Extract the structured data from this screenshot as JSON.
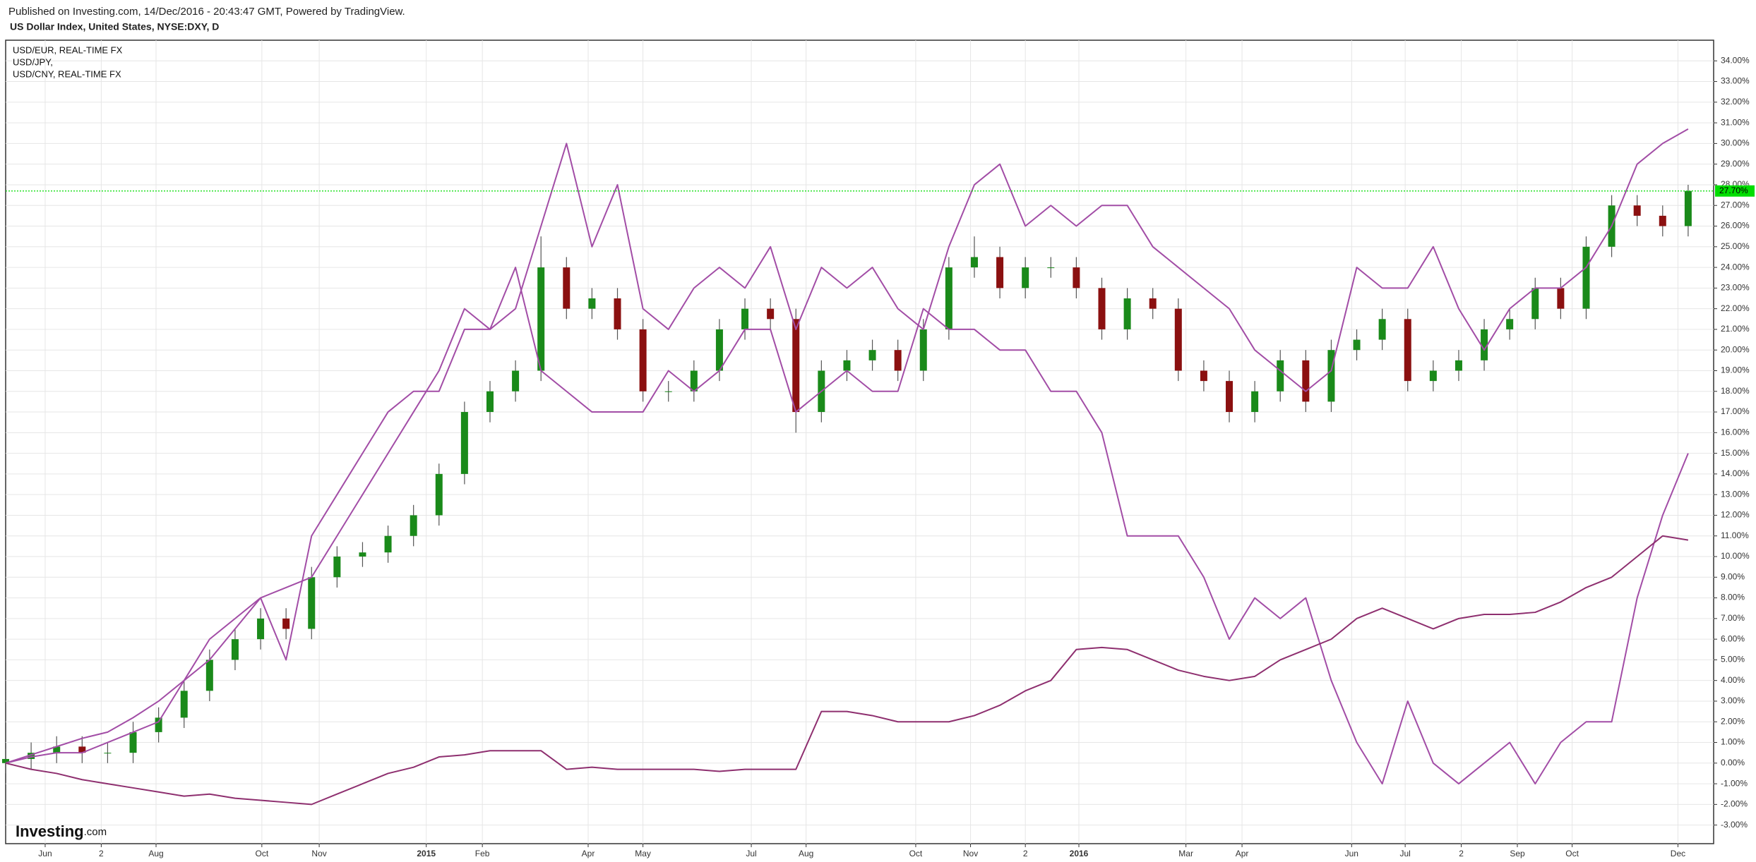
{
  "header": {
    "published": "Published on Investing.com, 14/Dec/2016 - 20:43:47 GMT, Powered by TradingView.",
    "title": "US Dollar Index, United States, NYSE:DXY, D"
  },
  "logo": {
    "brand": "Investing",
    "suffix": ".com"
  },
  "chart_data": {
    "type": "candlestick",
    "x": [
      0,
      2,
      4,
      6,
      8,
      10,
      12,
      14,
      16,
      18,
      20,
      22,
      24,
      26,
      28,
      30,
      32,
      34,
      36,
      38,
      40,
      42,
      44,
      46,
      48,
      50,
      52,
      54,
      56,
      58,
      60,
      62,
      64,
      66,
      68,
      70,
      72,
      74,
      76,
      78,
      80,
      82,
      84,
      86,
      88,
      90,
      92,
      94,
      96,
      98,
      100,
      102,
      104,
      106,
      108,
      110,
      112,
      114,
      116,
      118,
      120,
      122,
      124,
      126,
      128,
      130,
      132
    ],
    "candles": {
      "up_color": "#1a8a1a",
      "down_color": "#8b1010",
      "open": [
        0,
        0.2,
        0.5,
        0.8,
        0.5,
        0.5,
        1.5,
        2.2,
        3.5,
        5,
        6,
        7,
        6.5,
        9,
        10,
        10.2,
        11,
        12,
        14,
        17,
        18,
        19,
        24,
        22,
        22.5,
        21,
        18,
        18,
        19,
        21,
        22,
        21.5,
        17,
        19,
        19.5,
        20,
        19,
        21,
        24,
        24.5,
        23,
        24,
        24,
        23,
        21,
        22.5,
        22,
        19,
        18.5,
        17,
        18,
        19.5,
        17.5,
        20,
        20.5,
        21.5,
        18.5,
        19,
        19.5,
        21,
        21.5,
        23,
        22,
        25,
        27,
        26.5,
        26
      ],
      "high": [
        0.7,
        1.0,
        1.3,
        1.3,
        1.0,
        2.0,
        2.7,
        4.0,
        5.5,
        6.5,
        7.5,
        7.5,
        9.5,
        10.5,
        10.7,
        11.5,
        12.5,
        14.5,
        17.5,
        18.5,
        19.5,
        25.5,
        24.5,
        23,
        23,
        21.5,
        18.5,
        19.5,
        21.5,
        22.5,
        22.5,
        22,
        19.5,
        20,
        20.5,
        20.5,
        21.5,
        24.5,
        25.5,
        25,
        24.5,
        24.5,
        24.5,
        23.5,
        23,
        23,
        22.5,
        19.5,
        19,
        18.5,
        20,
        20,
        20.5,
        21,
        22,
        22,
        19.5,
        20,
        21.5,
        22,
        23.5,
        23.5,
        25.5,
        27.5,
        27.5,
        27,
        28
      ],
      "low": [
        -0.5,
        -0.3,
        0,
        0,
        0,
        0,
        1,
        1.7,
        3,
        4.5,
        5.5,
        6,
        6,
        8.5,
        9.5,
        9.7,
        10.5,
        11.5,
        13.5,
        16.5,
        17.5,
        18.5,
        21.5,
        21.5,
        20.5,
        17.5,
        17.5,
        17.5,
        18.5,
        20.5,
        21,
        16,
        16.5,
        18.5,
        19,
        18.5,
        18.5,
        20.5,
        23.5,
        22.5,
        22.5,
        23.5,
        22.5,
        20.5,
        20.5,
        21.5,
        18.5,
        18,
        16.5,
        16.5,
        17.5,
        17,
        17,
        19.5,
        20,
        18,
        18,
        18.5,
        19,
        20.5,
        21,
        21.5,
        21.5,
        24.5,
        26,
        25.5,
        25.5
      ],
      "close": [
        0.2,
        0.5,
        0.8,
        0.5,
        0.5,
        1.5,
        2.2,
        3.5,
        5,
        6,
        7,
        6.5,
        9,
        10,
        10.2,
        11,
        12,
        14,
        17,
        18,
        19,
        24,
        22,
        22.5,
        21,
        18,
        18,
        19,
        21,
        22,
        21.5,
        17,
        19,
        19.5,
        20,
        19,
        21,
        24,
        24.5,
        23,
        24,
        24,
        23,
        21,
        22.5,
        22,
        19,
        18.5,
        17,
        18,
        19.5,
        17.5,
        20,
        20.5,
        21.5,
        18.5,
        19,
        19.5,
        21,
        21.5,
        23,
        22,
        25,
        27,
        26.5,
        26,
        27.7
      ]
    },
    "series": [
      {
        "name": "USD/EUR, REAL-TIME FX",
        "color": "#a24da6",
        "values": [
          0,
          0.4,
          0.8,
          1.2,
          1.5,
          2.2,
          3,
          4,
          5,
          6.5,
          8,
          8.5,
          9,
          11,
          13,
          15,
          17,
          19,
          22,
          21,
          22,
          26,
          30,
          25,
          28,
          22,
          21,
          23,
          24,
          23,
          25,
          21,
          24,
          23,
          24,
          22,
          21,
          25,
          28,
          29,
          26,
          27,
          26,
          27,
          27,
          25,
          24,
          23,
          22,
          20,
          19,
          18,
          19,
          24,
          23,
          23,
          25,
          22,
          20,
          22,
          23,
          23,
          24,
          26,
          29,
          30,
          30.7
        ]
      },
      {
        "name": "USD/JPY,",
        "color": "#a24da6",
        "values": [
          0,
          0.3,
          0.5,
          0.5,
          1,
          1.5,
          2,
          4,
          6,
          7,
          8,
          5,
          11,
          13,
          15,
          17,
          18,
          18,
          21,
          21,
          24,
          19,
          18,
          17,
          17,
          17,
          19,
          18,
          19,
          21,
          21,
          17,
          18,
          19,
          18,
          18,
          22,
          21,
          21,
          20,
          20,
          18,
          18,
          16,
          11,
          11,
          11,
          9,
          6,
          8,
          7,
          8,
          4,
          1,
          -1,
          3,
          0,
          -1,
          0,
          1,
          -1,
          1,
          2,
          2,
          8,
          12,
          15
        ]
      },
      {
        "name": "USD/CNY, REAL-TIME FX",
        "color": "#8e2f6f",
        "values": [
          0,
          -0.3,
          -0.5,
          -0.8,
          -1,
          -1.2,
          -1.4,
          -1.6,
          -1.5,
          -1.7,
          -1.8,
          -1.9,
          -2,
          -1.5,
          -1,
          -0.5,
          -0.2,
          0.3,
          0.4,
          0.6,
          0.6,
          0.6,
          -0.3,
          -0.2,
          -0.3,
          -0.3,
          -0.3,
          -0.3,
          -0.4,
          -0.3,
          -0.3,
          -0.3,
          2.5,
          2.5,
          2.3,
          2,
          2,
          2,
          2.3,
          2.8,
          3.5,
          4,
          5.5,
          5.6,
          5.5,
          5,
          4.5,
          4.2,
          4,
          4.2,
          5,
          5.5,
          6,
          7,
          7.5,
          7,
          6.5,
          7,
          7.2,
          7.2,
          7.3,
          7.8,
          8.5,
          9,
          10,
          11,
          10.8
        ]
      }
    ],
    "price_line": {
      "value": 27.7,
      "label": "27.70%",
      "color": "#00dd00"
    },
    "xlim": [
      0,
      134
    ],
    "ylim": [
      -3.9,
      35.0
    ],
    "xticks": [
      {
        "value": 3.1,
        "label": "Jun"
      },
      {
        "value": 7.5,
        "label": "2"
      },
      {
        "value": 11.8,
        "label": "Aug"
      },
      {
        "value": 20.1,
        "label": "Oct"
      },
      {
        "value": 24.6,
        "label": "Nov"
      },
      {
        "value": 33.0,
        "label": "2015"
      },
      {
        "value": 37.4,
        "label": "Feb"
      },
      {
        "value": 45.7,
        "label": "Apr"
      },
      {
        "value": 50.0,
        "label": "May"
      },
      {
        "value": 58.5,
        "label": "Jul"
      },
      {
        "value": 62.8,
        "label": "Aug"
      },
      {
        "value": 71.4,
        "label": "Oct"
      },
      {
        "value": 75.7,
        "label": "Nov"
      },
      {
        "value": 80.0,
        "label": "2"
      },
      {
        "value": 84.2,
        "label": "2016"
      },
      {
        "value": 92.6,
        "label": "Mar"
      },
      {
        "value": 97.0,
        "label": "Apr"
      },
      {
        "value": 105.6,
        "label": "Jun"
      },
      {
        "value": 109.8,
        "label": "Jul"
      },
      {
        "value": 114.2,
        "label": "2"
      },
      {
        "value": 118.6,
        "label": "Sep"
      },
      {
        "value": 122.9,
        "label": "Oct"
      },
      {
        "value": 131.2,
        "label": "Dec"
      }
    ],
    "yticks": [
      {
        "value": -3,
        "label": "-3.00%"
      },
      {
        "value": -2,
        "label": "-2.00%"
      },
      {
        "value": -1,
        "label": "-1.00%"
      },
      {
        "value": 0,
        "label": "0.00%"
      },
      {
        "value": 1,
        "label": "1.00%"
      },
      {
        "value": 2,
        "label": "2.00%"
      },
      {
        "value": 3,
        "label": "3.00%"
      },
      {
        "value": 4,
        "label": "4.00%"
      },
      {
        "value": 5,
        "label": "5.00%"
      },
      {
        "value": 6,
        "label": "6.00%"
      },
      {
        "value": 7,
        "label": "7.00%"
      },
      {
        "value": 8,
        "label": "8.00%"
      },
      {
        "value": 9,
        "label": "9.00%"
      },
      {
        "value": 10,
        "label": "10.00%"
      },
      {
        "value": 11,
        "label": "11.00%"
      },
      {
        "value": 12,
        "label": "12.00%"
      },
      {
        "value": 13,
        "label": "13.00%"
      },
      {
        "value": 14,
        "label": "14.00%"
      },
      {
        "value": 15,
        "label": "15.00%"
      },
      {
        "value": 16,
        "label": "16.00%"
      },
      {
        "value": 17,
        "label": "17.00%"
      },
      {
        "value": 18,
        "label": "18.00%"
      },
      {
        "value": 19,
        "label": "19.00%"
      },
      {
        "value": 20,
        "label": "20.00%"
      },
      {
        "value": 21,
        "label": "21.00%"
      },
      {
        "value": 22,
        "label": "22.00%"
      },
      {
        "value": 23,
        "label": "23.00%"
      },
      {
        "value": 24,
        "label": "24.00%"
      },
      {
        "value": 25,
        "label": "25.00%"
      },
      {
        "value": 26,
        "label": "26.00%"
      },
      {
        "value": 27,
        "label": "27.00%"
      },
      {
        "value": 28,
        "label": "28.00%"
      },
      {
        "value": 29,
        "label": "29.00%"
      },
      {
        "value": 30,
        "label": "30.00%"
      },
      {
        "value": 31,
        "label": "31.00%"
      },
      {
        "value": 32,
        "label": "32.00%"
      },
      {
        "value": 33,
        "label": "33.00%"
      },
      {
        "value": 34,
        "label": "34.00%"
      }
    ],
    "grid": true
  }
}
